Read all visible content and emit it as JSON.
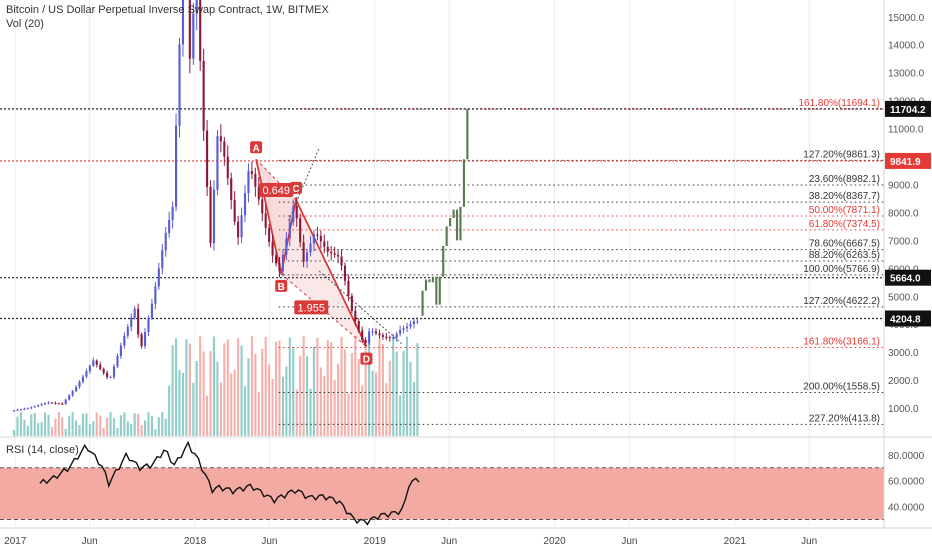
{
  "header": {
    "title": "Bitcoin / US Dollar Perpetual Inverse Swap Contract, 1W, BITMEX",
    "volume_label": "Vol (20)",
    "rsi_label": "RSI (14, close)"
  },
  "colors": {
    "up": "#5b5bd6",
    "down": "#8b1a3a",
    "projection": "#5a7a52",
    "vol_up": "#7fc6c0",
    "vol_down": "#f2a39d",
    "pattern": "#d93a3a",
    "rsi_fill": "#f3aaa3",
    "rsi_line": "#111111",
    "fib_black": "#333333",
    "fib_red": "#e53935"
  },
  "chart_data": {
    "type": "candlestick",
    "y_scale": "linear",
    "ylim": [
      0,
      15600
    ],
    "y_ticks": [
      1000,
      2000,
      3000,
      4000,
      5000,
      6000,
      7000,
      8000,
      9000,
      10000,
      11000,
      12000,
      13000,
      14000,
      15000
    ],
    "y_tick_labels": [
      "1000.0",
      "2000.0",
      "3000.0",
      "4000.0",
      "5000.0",
      "6000.0",
      "7000.0",
      "8000.0",
      "9000.0",
      "10000.0",
      "11000.0",
      "12000.0",
      "13000.0",
      "14000.0",
      "15000.0"
    ],
    "x_range": [
      "2016-12-01",
      "2021-10-31"
    ],
    "x_ticks": [
      {
        "date": "2017-01-01",
        "label": "2017"
      },
      {
        "date": "2017-06-01",
        "label": "Jun"
      },
      {
        "date": "2018-01-01",
        "label": "2018"
      },
      {
        "date": "2018-06-01",
        "label": "Jun"
      },
      {
        "date": "2019-01-01",
        "label": "2019"
      },
      {
        "date": "2019-06-01",
        "label": "Jun"
      },
      {
        "date": "2020-01-01",
        "label": "2020"
      },
      {
        "date": "2020-06-01",
        "label": "Jun"
      },
      {
        "date": "2021-01-01",
        "label": "2021"
      },
      {
        "date": "2021-06-01",
        "label": "Jun"
      }
    ],
    "price_path": {
      "start": "2016-12-26",
      "end": "2019-03-25",
      "points": [
        [
          "2016-12-26",
          900
        ],
        [
          "2017-02-01",
          1000
        ],
        [
          "2017-03-10",
          1200
        ],
        [
          "2017-04-10",
          1150
        ],
        [
          "2017-05-10",
          1800
        ],
        [
          "2017-06-12",
          2700
        ],
        [
          "2017-07-15",
          2000
        ],
        [
          "2017-08-10",
          3400
        ],
        [
          "2017-09-05",
          4600
        ],
        [
          "2017-09-15",
          3000
        ],
        [
          "2017-10-10",
          4800
        ],
        [
          "2017-11-05",
          7200
        ],
        [
          "2017-11-20",
          8200
        ],
        [
          "2017-12-10",
          16500
        ],
        [
          "2017-12-18",
          19500
        ],
        [
          "2017-12-25",
          13500
        ],
        [
          "2018-01-07",
          16500
        ],
        [
          "2018-01-20",
          11500
        ],
        [
          "2018-02-05",
          6900
        ],
        [
          "2018-02-20",
          11000
        ],
        [
          "2018-03-05",
          10000
        ],
        [
          "2018-04-01",
          7000
        ],
        [
          "2018-04-25",
          9700
        ],
        [
          "2018-05-15",
          8400
        ],
        [
          "2018-06-10",
          6500
        ],
        [
          "2018-06-25",
          5900
        ],
        [
          "2018-07-25",
          8400
        ],
        [
          "2018-08-12",
          6200
        ],
        [
          "2018-09-05",
          7300
        ],
        [
          "2018-09-30",
          6600
        ],
        [
          "2018-10-25",
          6400
        ],
        [
          "2018-11-20",
          4400
        ],
        [
          "2018-12-15",
          3200
        ],
        [
          "2018-12-25",
          3800
        ],
        [
          "2019-01-20",
          3550
        ],
        [
          "2019-02-10",
          3500
        ],
        [
          "2019-02-25",
          3800
        ],
        [
          "2019-03-10",
          3900
        ],
        [
          "2019-03-25",
          4100
        ]
      ]
    },
    "projection_path": {
      "start": "2019-04-01",
      "end": "2019-07-01",
      "points": [
        [
          "2019-04-01",
          4300
        ],
        [
          "2019-04-08",
          5200
        ],
        [
          "2019-04-15",
          5600
        ],
        [
          "2019-04-22",
          5500
        ],
        [
          "2019-04-29",
          5700
        ],
        [
          "2019-05-06",
          4700
        ],
        [
          "2019-05-13",
          5700
        ],
        [
          "2019-05-20",
          6800
        ],
        [
          "2019-05-27",
          7500
        ],
        [
          "2019-06-03",
          7800
        ],
        [
          "2019-06-10",
          8100
        ],
        [
          "2019-06-17",
          7000
        ],
        [
          "2019-06-24",
          8200
        ],
        [
          "2019-07-01",
          9900
        ],
        [
          "2019-07-08",
          11704.2
        ]
      ]
    },
    "harmonic_points": [
      {
        "label": "A",
        "date": "2018-05-05",
        "price": 9900
      },
      {
        "label": "B",
        "date": "2018-06-25",
        "price": 5800
      },
      {
        "label": "C",
        "date": "2018-07-25",
        "price": 8450
      },
      {
        "label": "D",
        "date": "2018-12-15",
        "price": 3200
      }
    ],
    "pattern_ratios": [
      {
        "text": "0.649",
        "date": "2018-06-15",
        "price": 8800
      },
      {
        "text": "1.955",
        "date": "2018-08-25",
        "price": 4600
      }
    ],
    "fib_levels": [
      {
        "price": 11694.1,
        "label": "161.80%(11694.1)",
        "color": "red"
      },
      {
        "price": 9861.3,
        "label": "127.20%(9861.3)",
        "color": "black"
      },
      {
        "price": 8982.1,
        "label": "23.60%(8982.1)",
        "color": "black"
      },
      {
        "price": 8367.7,
        "label": "38.20%(8367.7)",
        "color": "black"
      },
      {
        "price": 7871.1,
        "label": "50.00%(7871.1)",
        "color": "red"
      },
      {
        "price": 7374.5,
        "label": "61.80%(7374.5)",
        "color": "red"
      },
      {
        "price": 6667.5,
        "label": "78.60%(6667.5)",
        "color": "black"
      },
      {
        "price": 6263.5,
        "label": "88.20%(6263.5)",
        "color": "black"
      },
      {
        "price": 5766.9,
        "label": "100.00%(5766.9)",
        "color": "black"
      },
      {
        "price": 4622.2,
        "label": "127.20%(4622.2)",
        "color": "black"
      },
      {
        "price": 3166.1,
        "label": "161.80%(3166.1)",
        "color": "red"
      },
      {
        "price": 1558.5,
        "label": "200.00%(1558.5)",
        "color": "black"
      },
      {
        "price": 413.8,
        "label": "227.20%(413.8)",
        "color": "black"
      }
    ],
    "price_markers": [
      {
        "price": 11704.2,
        "label": "11704.2",
        "style": "black"
      },
      {
        "price": 9841.9,
        "label": "9841.9",
        "style": "red"
      },
      {
        "price": 5664.0,
        "label": "5664.0",
        "style": "dark"
      },
      {
        "price": 4204.8,
        "label": "4204.8",
        "style": "dark"
      }
    ],
    "rsi": {
      "ylim": [
        25,
        93
      ],
      "band": [
        30,
        70
      ],
      "ticks": [
        40,
        60,
        80
      ],
      "tick_labels": [
        "40.0000",
        "60.0000",
        "80.0000"
      ],
      "points": [
        [
          "2017-02-20",
          58
        ],
        [
          "2017-03-20",
          62
        ],
        [
          "2017-04-20",
          70
        ],
        [
          "2017-05-25",
          87
        ],
        [
          "2017-06-25",
          72
        ],
        [
          "2017-07-10",
          58
        ],
        [
          "2017-08-15",
          80
        ],
        [
          "2017-09-10",
          70
        ],
        [
          "2017-10-05",
          72
        ],
        [
          "2017-11-01",
          84
        ],
        [
          "2017-11-20",
          72
        ],
        [
          "2017-12-18",
          88
        ],
        [
          "2018-01-05",
          78
        ],
        [
          "2018-02-05",
          53
        ],
        [
          "2018-02-20",
          55
        ],
        [
          "2018-03-20",
          52
        ],
        [
          "2018-04-25",
          56
        ],
        [
          "2018-06-10",
          45
        ],
        [
          "2018-07-25",
          53
        ],
        [
          "2018-08-20",
          47
        ],
        [
          "2018-09-20",
          48
        ],
        [
          "2018-10-20",
          44
        ],
        [
          "2018-11-20",
          30
        ],
        [
          "2018-12-15",
          28
        ],
        [
          "2019-01-10",
          33
        ],
        [
          "2019-02-10",
          35
        ],
        [
          "2019-03-01",
          38
        ],
        [
          "2019-03-10",
          57
        ],
        [
          "2019-03-20",
          59
        ],
        [
          "2019-03-28",
          62
        ],
        [
          "2019-04-05",
          60
        ]
      ]
    }
  }
}
